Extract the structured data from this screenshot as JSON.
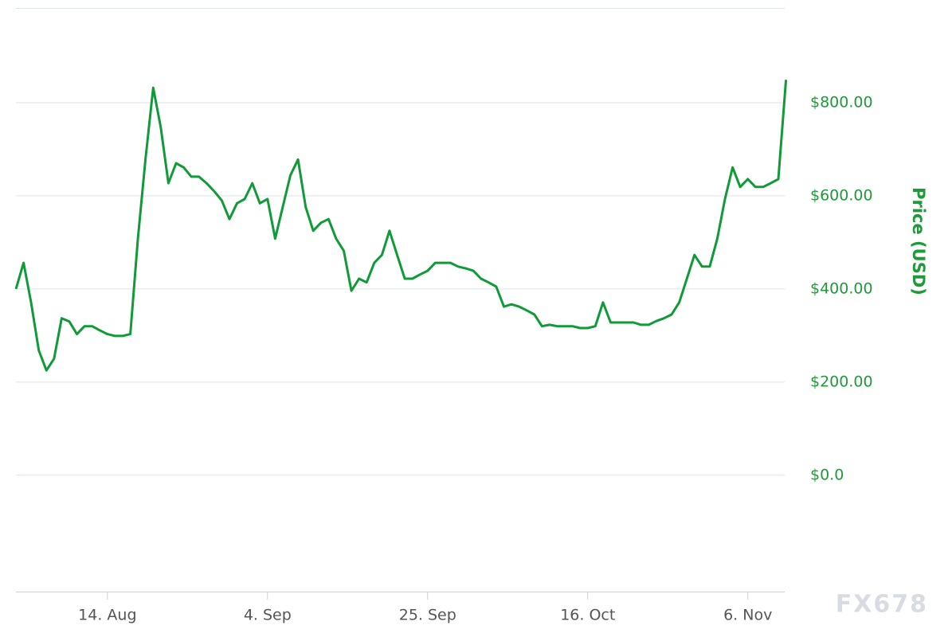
{
  "chart_data": {
    "type": "line",
    "y_axis_label": "Price (USD)",
    "x": [
      "2. Aug",
      "3. Aug",
      "4. Aug",
      "5. Aug",
      "6. Aug",
      "7. Aug",
      "8. Aug",
      "9. Aug",
      "10. Aug",
      "11. Aug",
      "12. Aug",
      "13. Aug",
      "14. Aug",
      "15. Aug",
      "16. Aug",
      "17. Aug",
      "18. Aug",
      "19. Aug",
      "20. Aug",
      "21. Aug",
      "22. Aug",
      "23. Aug",
      "24. Aug",
      "25. Aug",
      "26. Aug",
      "27. Aug",
      "28. Aug",
      "29. Aug",
      "30. Aug",
      "31. Aug",
      "1. Sep",
      "2. Sep",
      "3. Sep",
      "4. Sep",
      "5. Sep",
      "6. Sep",
      "7. Sep",
      "8. Sep",
      "9. Sep",
      "10. Sep",
      "11. Sep",
      "12. Sep",
      "13. Sep",
      "14. Sep",
      "15. Sep",
      "16. Sep",
      "17. Sep",
      "18. Sep",
      "19. Sep",
      "20. Sep",
      "21. Sep",
      "22. Sep",
      "23. Sep",
      "24. Sep",
      "25. Sep",
      "26. Sep",
      "27. Sep",
      "28. Sep",
      "29. Sep",
      "30. Sep",
      "1. Oct",
      "2. Oct",
      "3. Oct",
      "4. Oct",
      "5. Oct",
      "6. Oct",
      "7. Oct",
      "8. Oct",
      "9. Oct",
      "10. Oct",
      "11. Oct",
      "12. Oct",
      "13. Oct",
      "14. Oct",
      "15. Oct",
      "16. Oct",
      "17. Oct",
      "18. Oct",
      "19. Oct",
      "20. Oct",
      "21. Oct",
      "22. Oct",
      "23. Oct",
      "24. Oct",
      "25. Oct",
      "26. Oct",
      "27. Oct",
      "28. Oct",
      "29. Oct",
      "30. Oct",
      "31. Oct",
      "1. Nov",
      "2. Nov",
      "3. Nov",
      "4. Nov",
      "5. Nov",
      "6. Nov",
      "7. Nov",
      "8. Nov",
      "9. Nov",
      "10. Nov",
      "11. Nov"
    ],
    "series": [
      {
        "name": "Price",
        "color": "#109a38",
        "values": [
          400,
          456,
          370,
          268,
          225,
          250,
          337,
          330,
          303,
          320,
          320,
          311,
          303,
          299,
          299,
          303,
          508,
          680,
          832,
          747,
          627,
          670,
          661,
          641,
          641,
          627,
          610,
          590,
          550,
          584,
          593,
          627,
          584,
          593,
          508,
          576,
          644,
          678,
          576,
          525,
          542,
          550,
          508,
          482,
          396,
          422,
          414,
          456,
          473,
          525,
          473,
          422,
          422,
          431,
          439,
          456,
          456,
          456,
          448,
          444,
          439,
          422,
          414,
          405,
          362,
          367,
          362,
          354,
          345,
          320,
          323,
          320,
          320,
          320,
          316,
          316,
          320,
          371,
          328,
          328,
          328,
          328,
          323,
          323,
          331,
          337,
          345,
          371,
          422,
          473,
          448,
          448,
          508,
          593,
          661,
          619,
          636,
          619,
          619,
          627,
          636,
          849
        ]
      }
    ],
    "xticks": [
      "14. Aug",
      "4. Sep",
      "25. Sep",
      "16. Oct",
      "6. Nov"
    ],
    "ylim": [
      -250,
      1000
    ],
    "yticks": [
      {
        "value": 0,
        "label": "$0.0"
      },
      {
        "value": 200,
        "label": "$200.00"
      },
      {
        "value": 400,
        "label": "$400.00"
      },
      {
        "value": 600,
        "label": "$600.00"
      },
      {
        "value": 800,
        "label": "$800.00"
      }
    ],
    "grid": true
  },
  "watermark": "FX678"
}
